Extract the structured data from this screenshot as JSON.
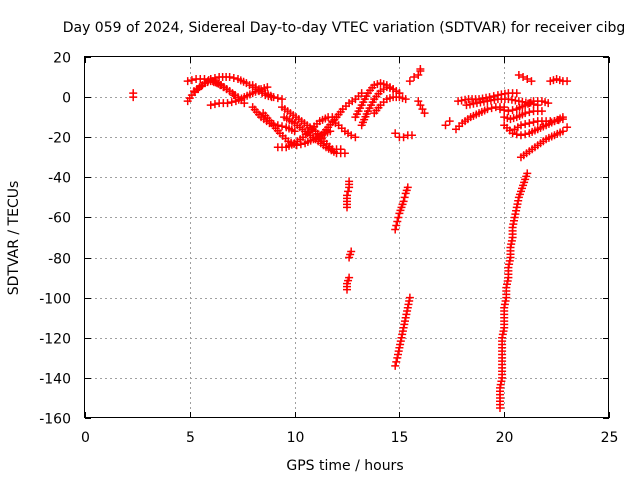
{
  "chart_data": {
    "type": "scatter",
    "title": "Day 059 of 2024, Sidereal Day-to-day VTEC variation (SDTVAR) for receiver cibg",
    "xlabel": "GPS time / hours",
    "ylabel": "SDTVAR / TECUs",
    "xlim": [
      0,
      25
    ],
    "ylim": [
      -160,
      20
    ],
    "xticks": [
      0,
      5,
      10,
      15,
      20,
      25
    ],
    "yticks": [
      20,
      0,
      -20,
      -40,
      -60,
      -80,
      -100,
      -120,
      -140,
      -160
    ],
    "grid": true,
    "marker": "+",
    "color": "#ff0000",
    "series": [
      {
        "name": "isolated",
        "points": [
          [
            2.3,
            2
          ],
          [
            2.3,
            0
          ]
        ]
      },
      {
        "name": "arc-1",
        "points": [
          [
            4.9,
            -2
          ],
          [
            5.1,
            1
          ],
          [
            5.4,
            4
          ],
          [
            5.7,
            7
          ],
          [
            6.0,
            8
          ],
          [
            6.3,
            7
          ],
          [
            6.6,
            5
          ],
          [
            6.9,
            3
          ],
          [
            7.1,
            1
          ]
        ]
      },
      {
        "name": "arc-2",
        "points": [
          [
            4.9,
            8
          ],
          [
            5.3,
            9
          ],
          [
            5.7,
            9
          ],
          [
            6.1,
            8
          ],
          [
            6.5,
            6
          ],
          [
            6.9,
            3
          ],
          [
            7.3,
            0
          ],
          [
            7.6,
            -3
          ]
        ]
      },
      {
        "name": "arc-3",
        "points": [
          [
            5.2,
            3
          ],
          [
            5.6,
            6
          ],
          [
            6.0,
            9
          ],
          [
            6.4,
            10
          ],
          [
            6.9,
            10
          ],
          [
            7.3,
            9
          ],
          [
            7.7,
            7
          ],
          [
            8.0,
            5
          ],
          [
            8.3,
            3
          ],
          [
            8.6,
            1
          ],
          [
            8.9,
            0
          ]
        ]
      },
      {
        "name": "arc-4",
        "points": [
          [
            6.0,
            -4
          ],
          [
            6.4,
            -3
          ],
          [
            6.8,
            -3
          ],
          [
            7.2,
            -2
          ],
          [
            7.6,
            0
          ],
          [
            8.0,
            2
          ],
          [
            8.4,
            4
          ],
          [
            8.7,
            5
          ]
        ]
      },
      {
        "name": "arc-5",
        "points": [
          [
            8.0,
            6
          ],
          [
            8.3,
            4
          ],
          [
            8.6,
            2
          ],
          [
            9.0,
            0
          ],
          [
            9.4,
            -1
          ]
        ]
      },
      {
        "name": "arc-6",
        "points": [
          [
            8.0,
            -5
          ],
          [
            8.4,
            -10
          ],
          [
            8.8,
            -13
          ],
          [
            9.2,
            -14
          ],
          [
            9.6,
            -15
          ],
          [
            10.0,
            -17
          ]
        ]
      },
      {
        "name": "arc-7",
        "points": [
          [
            8.5,
            -8
          ],
          [
            8.9,
            -13
          ],
          [
            9.3,
            -18
          ],
          [
            9.7,
            -22
          ],
          [
            10.1,
            -24
          ],
          [
            10.5,
            -23
          ],
          [
            10.9,
            -21
          ],
          [
            11.3,
            -19
          ],
          [
            11.7,
            -17
          ]
        ]
      },
      {
        "name": "arc-8",
        "points": [
          [
            9.2,
            -25
          ],
          [
            9.6,
            -25
          ],
          [
            10.0,
            -23
          ],
          [
            10.4,
            -20
          ],
          [
            10.8,
            -16
          ],
          [
            11.2,
            -12
          ],
          [
            11.6,
            -10
          ],
          [
            12.0,
            -10
          ]
        ]
      },
      {
        "name": "arc-9",
        "points": [
          [
            9.4,
            -5
          ],
          [
            9.8,
            -8
          ],
          [
            10.2,
            -11
          ],
          [
            10.6,
            -14
          ],
          [
            11.0,
            -17
          ],
          [
            11.4,
            -22
          ],
          [
            11.8,
            -26
          ],
          [
            12.2,
            -26
          ]
        ]
      },
      {
        "name": "arc-10",
        "points": [
          [
            9.5,
            -10
          ],
          [
            10.0,
            -13
          ],
          [
            10.5,
            -17
          ],
          [
            11.0,
            -21
          ],
          [
            11.5,
            -25
          ],
          [
            12.0,
            -28
          ],
          [
            12.4,
            -28
          ]
        ]
      },
      {
        "name": "arc-11",
        "points": [
          [
            11.2,
            -20
          ],
          [
            11.6,
            -15
          ],
          [
            12.0,
            -10
          ],
          [
            12.3,
            -6
          ],
          [
            12.6,
            -3
          ],
          [
            12.9,
            -1
          ],
          [
            13.2,
            2
          ]
        ]
      },
      {
        "name": "arc-12",
        "points": [
          [
            11.8,
            -12
          ],
          [
            12.1,
            -14
          ],
          [
            12.4,
            -17
          ],
          [
            12.7,
            -19
          ],
          [
            12.9,
            -20
          ]
        ]
      },
      {
        "name": "arc-13",
        "points": [
          [
            12.9,
            -10
          ],
          [
            13.2,
            -4
          ],
          [
            13.5,
            2
          ],
          [
            13.8,
            6
          ],
          [
            14.1,
            7
          ],
          [
            14.4,
            6
          ],
          [
            14.7,
            4
          ],
          [
            15.0,
            2
          ]
        ]
      },
      {
        "name": "arc-14",
        "points": [
          [
            13.2,
            -14
          ],
          [
            13.5,
            -7
          ],
          [
            13.8,
            -1
          ],
          [
            14.1,
            3
          ],
          [
            14.4,
            5
          ],
          [
            14.7,
            4
          ],
          [
            15.0,
            2
          ]
        ]
      },
      {
        "name": "arc-15",
        "points": [
          [
            13.8,
            -8
          ],
          [
            14.1,
            -4
          ],
          [
            14.4,
            -1
          ],
          [
            14.7,
            0
          ],
          [
            15.0,
            0
          ],
          [
            15.3,
            -1
          ]
        ]
      },
      {
        "name": "arc-16",
        "points": [
          [
            12.6,
            -42
          ],
          [
            12.6,
            -45
          ],
          [
            12.5,
            -49
          ],
          [
            12.5,
            -52
          ],
          [
            12.5,
            -55
          ]
        ]
      },
      {
        "name": "arc-17",
        "points": [
          [
            12.7,
            -77
          ],
          [
            12.6,
            -80
          ]
        ]
      },
      {
        "name": "arc-18",
        "points": [
          [
            12.6,
            -90
          ],
          [
            12.5,
            -93
          ],
          [
            12.5,
            -96
          ]
        ]
      },
      {
        "name": "arc-19",
        "points": [
          [
            14.8,
            -18
          ],
          [
            15.0,
            -20
          ],
          [
            15.2,
            -20
          ],
          [
            15.4,
            -19
          ],
          [
            15.6,
            -19
          ]
        ]
      },
      {
        "name": "arc-20",
        "points": [
          [
            15.4,
            -45
          ],
          [
            15.3,
            -48
          ],
          [
            15.2,
            -52
          ],
          [
            15.1,
            -55
          ],
          [
            15.0,
            -58
          ],
          [
            14.9,
            -62
          ],
          [
            14.8,
            -66
          ]
        ]
      },
      {
        "name": "arc-21",
        "points": [
          [
            15.5,
            -100
          ],
          [
            15.4,
            -105
          ],
          [
            15.3,
            -110
          ],
          [
            15.2,
            -115
          ],
          [
            15.1,
            -120
          ],
          [
            15.0,
            -125
          ],
          [
            14.9,
            -130
          ],
          [
            14.8,
            -134
          ]
        ]
      },
      {
        "name": "arc-22",
        "points": [
          [
            15.5,
            8
          ],
          [
            15.7,
            10
          ],
          [
            15.9,
            11
          ],
          [
            16.0,
            13
          ],
          [
            16.0,
            14
          ]
        ]
      },
      {
        "name": "arc-23",
        "points": [
          [
            15.9,
            -2
          ],
          [
            16.0,
            -4
          ],
          [
            16.1,
            -6
          ],
          [
            16.2,
            -8
          ]
        ]
      },
      {
        "name": "arc-24",
        "points": [
          [
            17.2,
            -14
          ],
          [
            17.4,
            -12
          ]
        ]
      },
      {
        "name": "arc-25",
        "points": [
          [
            17.7,
            -16
          ],
          [
            18.0,
            -13
          ],
          [
            18.4,
            -10
          ],
          [
            18.8,
            -8
          ],
          [
            19.2,
            -6
          ],
          [
            19.6,
            -5
          ],
          [
            20.0,
            -5
          ]
        ]
      },
      {
        "name": "arc-26",
        "points": [
          [
            17.8,
            -2
          ],
          [
            18.3,
            -1
          ],
          [
            18.8,
            -1
          ],
          [
            19.3,
            0
          ],
          [
            19.7,
            1
          ],
          [
            20.2,
            2
          ],
          [
            20.6,
            2
          ]
        ]
      },
      {
        "name": "arc-27",
        "points": [
          [
            18.2,
            -4
          ],
          [
            18.7,
            -3
          ],
          [
            19.2,
            -2
          ],
          [
            19.7,
            -1
          ],
          [
            20.2,
            -1
          ],
          [
            20.7,
            -2
          ],
          [
            21.2,
            -3
          ],
          [
            21.6,
            -4
          ]
        ]
      },
      {
        "name": "arc-28",
        "points": [
          [
            19.8,
            -6
          ],
          [
            20.2,
            -7
          ],
          [
            20.6,
            -6
          ],
          [
            21.0,
            -4
          ],
          [
            21.4,
            -2
          ],
          [
            21.8,
            -2
          ],
          [
            22.1,
            -3
          ]
        ]
      },
      {
        "name": "arc-29",
        "points": [
          [
            20.0,
            -10
          ],
          [
            20.3,
            -11
          ],
          [
            20.6,
            -10
          ],
          [
            21.0,
            -8
          ],
          [
            21.4,
            -7
          ],
          [
            21.8,
            -7
          ]
        ]
      },
      {
        "name": "arc-30",
        "points": [
          [
            20.0,
            -14
          ],
          [
            20.4,
            -18
          ],
          [
            20.8,
            -19
          ],
          [
            21.2,
            -18
          ],
          [
            21.6,
            -16
          ],
          [
            22.0,
            -14
          ],
          [
            22.4,
            -12
          ],
          [
            22.8,
            -10
          ]
        ]
      },
      {
        "name": "arc-31",
        "points": [
          [
            20.5,
            -16
          ],
          [
            20.8,
            -14
          ],
          [
            21.2,
            -13
          ],
          [
            21.6,
            -12
          ],
          [
            22.0,
            -12
          ],
          [
            22.4,
            -12
          ],
          [
            22.8,
            -11
          ]
        ]
      },
      {
        "name": "arc-32",
        "points": [
          [
            20.8,
            -30
          ],
          [
            21.2,
            -27
          ],
          [
            21.6,
            -24
          ],
          [
            22.0,
            -21
          ],
          [
            22.4,
            -19
          ],
          [
            22.8,
            -17
          ],
          [
            23.0,
            -15
          ]
        ]
      },
      {
        "name": "arc-33",
        "points": [
          [
            20.7,
            11
          ],
          [
            20.9,
            10
          ],
          [
            21.1,
            9
          ],
          [
            21.3,
            8
          ]
        ]
      },
      {
        "name": "arc-34",
        "points": [
          [
            22.2,
            8
          ],
          [
            22.5,
            9
          ],
          [
            22.8,
            8
          ],
          [
            23.0,
            8
          ]
        ]
      },
      {
        "name": "arc-35",
        "points": [
          [
            19.8,
            -155
          ],
          [
            19.8,
            -150
          ],
          [
            19.8,
            -145
          ],
          [
            19.9,
            -140
          ],
          [
            19.9,
            -135
          ],
          [
            19.9,
            -130
          ],
          [
            19.9,
            -125
          ],
          [
            19.9,
            -120
          ],
          [
            20.0,
            -115
          ],
          [
            20.0,
            -110
          ],
          [
            20.0,
            -105
          ],
          [
            20.1,
            -100
          ],
          [
            20.1,
            -95
          ],
          [
            20.2,
            -90
          ],
          [
            20.2,
            -85
          ],
          [
            20.3,
            -80
          ],
          [
            20.3,
            -75
          ],
          [
            20.4,
            -70
          ],
          [
            20.4,
            -65
          ],
          [
            20.5,
            -60
          ],
          [
            20.6,
            -55
          ],
          [
            20.7,
            -50
          ],
          [
            20.8,
            -47
          ],
          [
            20.9,
            -44
          ],
          [
            21.0,
            -41
          ],
          [
            21.1,
            -38
          ]
        ]
      }
    ]
  }
}
